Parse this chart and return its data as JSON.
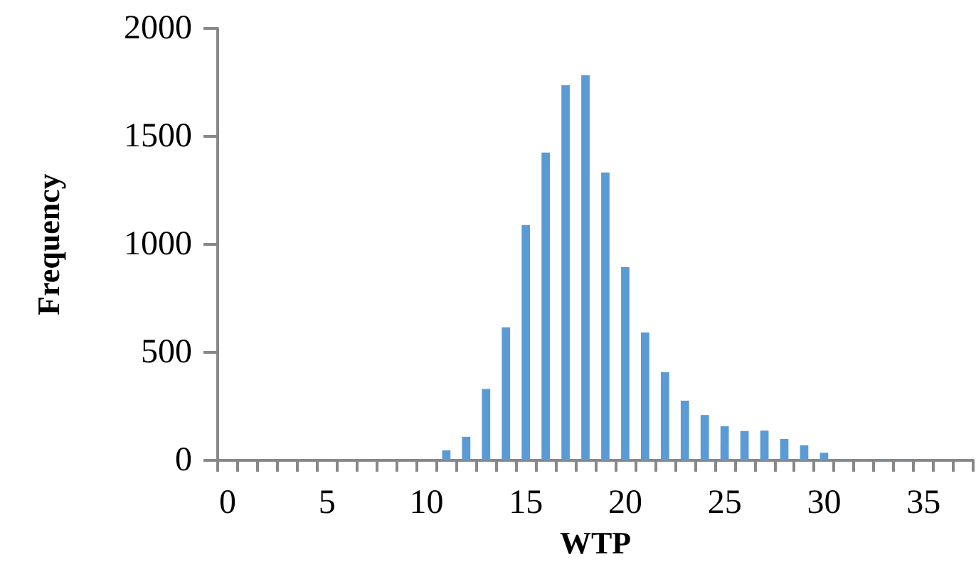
{
  "chart_data": {
    "type": "bar",
    "xlabel": "WTP",
    "ylabel": "Frequency",
    "categories": [
      "0",
      null,
      null,
      null,
      null,
      "5",
      null,
      null,
      null,
      null,
      "10",
      null,
      null,
      null,
      null,
      "15",
      null,
      null,
      null,
      null,
      "20",
      null,
      null,
      null,
      null,
      "25",
      null,
      null,
      null,
      null,
      "30",
      null,
      null,
      null,
      null,
      "35",
      null,
      null
    ],
    "values": [
      0,
      0,
      0,
      0,
      0,
      0,
      0,
      0,
      0,
      0,
      0,
      46,
      109,
      331,
      616,
      1090,
      1425,
      1737,
      1783,
      1333,
      895,
      592,
      408,
      276,
      210,
      158,
      136,
      138,
      99,
      70,
      35,
      3,
      6,
      3,
      3,
      0,
      0,
      0
    ],
    "color": "#5b9bd5",
    "ylim": [
      0,
      2000
    ],
    "yticks": [
      0,
      500,
      1000,
      1500,
      2000
    ],
    "grid": false
  }
}
